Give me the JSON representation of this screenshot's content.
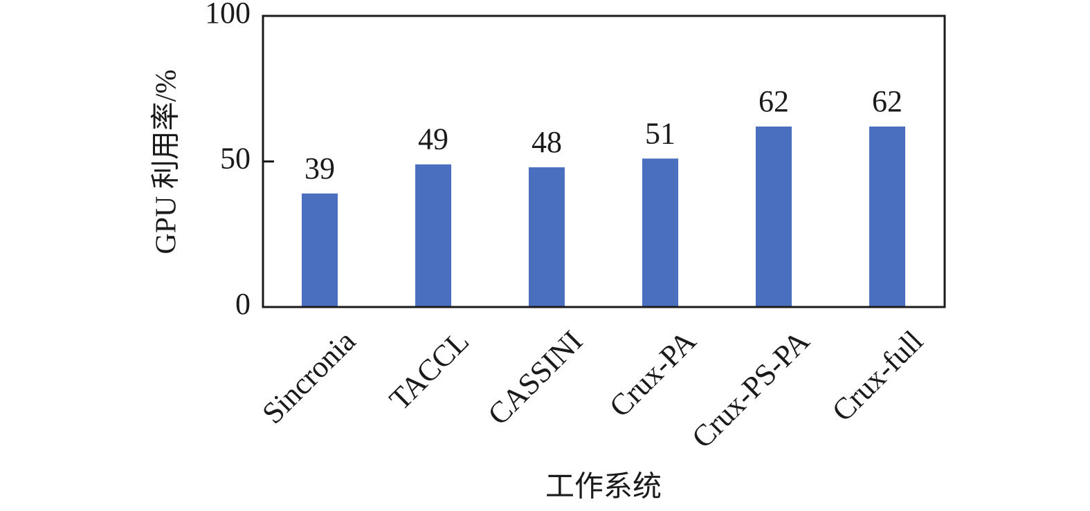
{
  "chart_data": {
    "type": "bar",
    "categories": [
      "Sincronia",
      "TACCL",
      "CASSINI",
      "Crux-PA",
      "Crux-PS-PA",
      "Crux-full"
    ],
    "values": [
      39,
      49,
      48,
      51,
      62,
      62
    ],
    "data_labels": [
      "39",
      "49",
      "48",
      "51",
      "62",
      "62"
    ],
    "title": "",
    "xlabel": "工作系统",
    "ylabel": "GPU 利用率/%",
    "ylim": [
      0,
      100
    ],
    "yticks": [
      0,
      50,
      100
    ],
    "ytick_labels": [
      "0",
      "50",
      "100"
    ],
    "grid": false,
    "legend": "none",
    "bar_color": "#4a6fbf",
    "axis_color": "#1a1a1a"
  }
}
